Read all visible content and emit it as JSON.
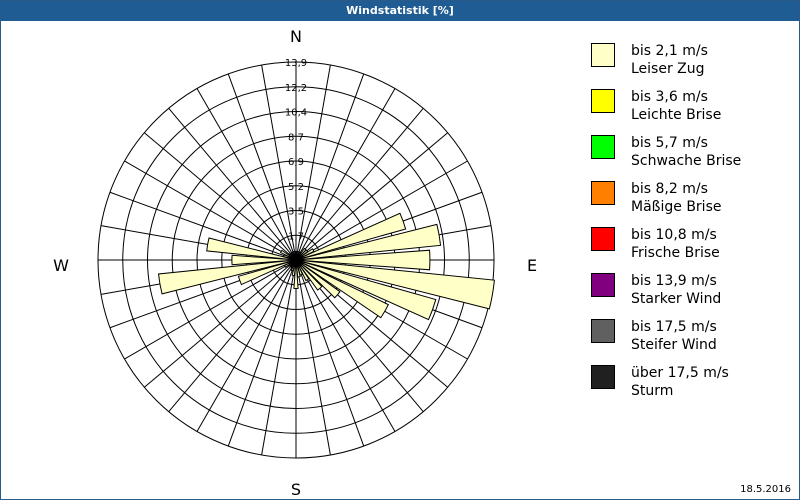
{
  "window": {
    "title": "Windstatistik [%]",
    "date": "18.5.2016"
  },
  "chart_data": {
    "type": "polar-bar",
    "title": "Windstatistik [%]",
    "directions": {
      "north": "N",
      "east": "E",
      "south": "S",
      "west": "W"
    },
    "ring_labels": [
      "1,7",
      "3,5",
      "5,2",
      "6,9",
      "8,7",
      "10,4",
      "12,2",
      "13,9"
    ],
    "rmax": 13.9,
    "sectors": 36,
    "series": [
      {
        "name": "bis 2,1 m/s",
        "values": [
          0.6,
          0.6,
          0.6,
          0.6,
          1.0,
          1.0,
          1.4,
          8.0,
          10.2,
          9.4,
          14.0,
          10.2,
          7.2,
          3.8,
          2.6,
          1.6,
          1.1,
          1.2,
          2.0,
          1.1,
          0.8,
          0.6,
          0.6,
          0.6,
          0.9,
          4.2,
          9.7,
          4.5,
          6.3,
          0.9,
          1.2,
          0.6,
          0.6,
          0.6,
          0.6,
          0.6
        ]
      }
    ]
  },
  "legend": [
    {
      "line1": "bis 2,1 m/s",
      "line2": "Leiser Zug",
      "color": "#ffffc8"
    },
    {
      "line1": "bis 3,6 m/s",
      "line2": "Leichte Brise",
      "color": "#ffff00"
    },
    {
      "line1": "bis 5,7 m/s",
      "line2": "Schwache Brise",
      "color": "#00ff00"
    },
    {
      "line1": "bis 8,2 m/s",
      "line2": "Mäßige Brise",
      "color": "#ff8000"
    },
    {
      "line1": "bis 10,8 m/s",
      "line2": "Frische Brise",
      "color": "#ff0000"
    },
    {
      "line1": "bis 13,9 m/s",
      "line2": "Starker Wind",
      "color": "#800080"
    },
    {
      "line1": "bis 17,5 m/s",
      "line2": "Steifer Wind",
      "color": "#606060"
    },
    {
      "line1": "über 17,5 m/s",
      "line2": "Sturm",
      "color": "#202020"
    }
  ]
}
